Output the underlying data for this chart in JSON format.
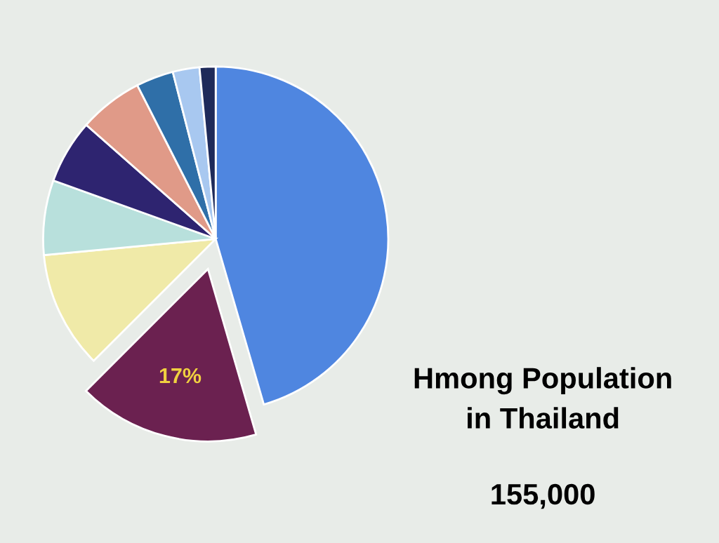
{
  "chart_data": {
    "type": "pie",
    "title": "Hmong Population\nin Thailand",
    "subtitle": "155,000",
    "categories": [
      null,
      null,
      null,
      null,
      null,
      null,
      null,
      null,
      null
    ],
    "values": [
      45.5,
      17,
      11,
      7,
      6,
      6,
      3.5,
      2.5,
      1.5
    ],
    "value_labels": [
      null,
      "17%",
      null,
      null,
      null,
      null,
      null,
      null,
      null
    ],
    "colors": [
      "#4f86e0",
      "#6b2150",
      "#f0eaa8",
      "#b8e0dc",
      "#2e2470",
      "#e09a88",
      "#2f6fa8",
      "#a8c8f0",
      "#1e2a5a"
    ],
    "legend": false
  }
}
